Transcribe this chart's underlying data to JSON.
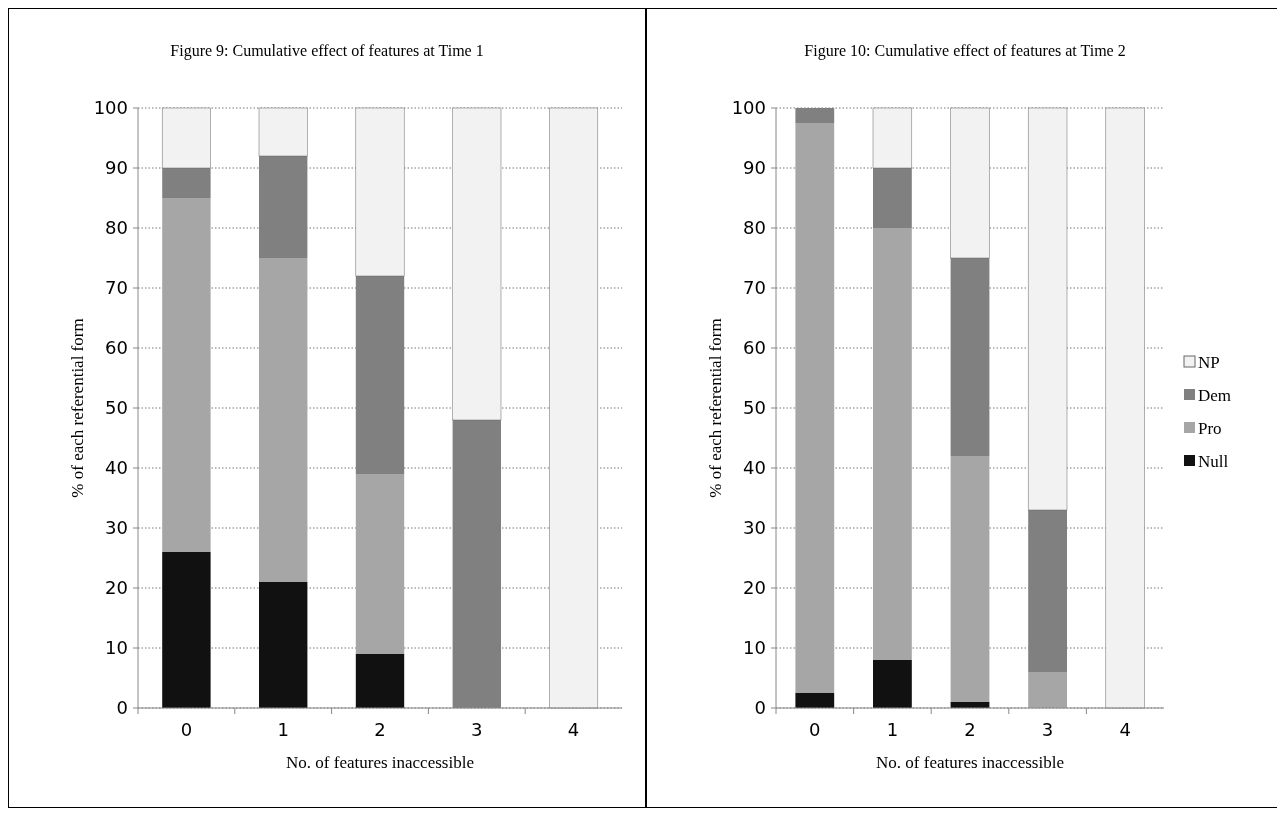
{
  "chart_data": [
    {
      "type": "bar",
      "title": "Figure 9: Cumulative effect of features at Time 1",
      "xlabel": "No. of features inaccessible",
      "ylabel": "% of each referential form",
      "categories": [
        "0",
        "1",
        "2",
        "3",
        "4"
      ],
      "stacked": true,
      "ylim": [
        0,
        100
      ],
      "yticks": [
        0,
        10,
        20,
        30,
        40,
        50,
        60,
        70,
        80,
        90,
        100
      ],
      "grid": "y",
      "legend": false,
      "series": [
        {
          "color": "#111111",
          "values": [
            26,
            21,
            9,
            0,
            0
          ]
        },
        {
          "color": "#a6a6a6",
          "values": [
            59,
            54,
            30,
            0,
            0
          ]
        },
        {
          "color": "#808080",
          "values": [
            5,
            17,
            33,
            48,
            0
          ]
        },
        {
          "color": "#f2f2f2",
          "values": [
            10,
            8,
            28,
            52,
            100
          ]
        }
      ]
    },
    {
      "type": "bar",
      "title": "Figure 10: Cumulative effect of features at Time 2",
      "xlabel": "No. of features inaccessible",
      "ylabel": "% of each referential form",
      "categories": [
        "0",
        "1",
        "2",
        "3",
        "4"
      ],
      "stacked": true,
      "ylim": [
        0,
        100
      ],
      "yticks": [
        0,
        10,
        20,
        30,
        40,
        50,
        60,
        70,
        80,
        90,
        100
      ],
      "grid": "y",
      "legend": "right",
      "series": [
        {
          "name": "Null",
          "color": "#111111",
          "values": [
            2.5,
            8,
            1,
            0,
            0
          ]
        },
        {
          "name": "Pro",
          "color": "#a6a6a6",
          "values": [
            95,
            72,
            41,
            6,
            0
          ]
        },
        {
          "name": "Dem",
          "color": "#808080",
          "values": [
            2.5,
            10,
            33,
            27,
            0
          ]
        },
        {
          "name": "NP",
          "color": "#f2f2f2",
          "values": [
            0,
            10,
            25,
            67,
            100
          ]
        }
      ]
    }
  ]
}
